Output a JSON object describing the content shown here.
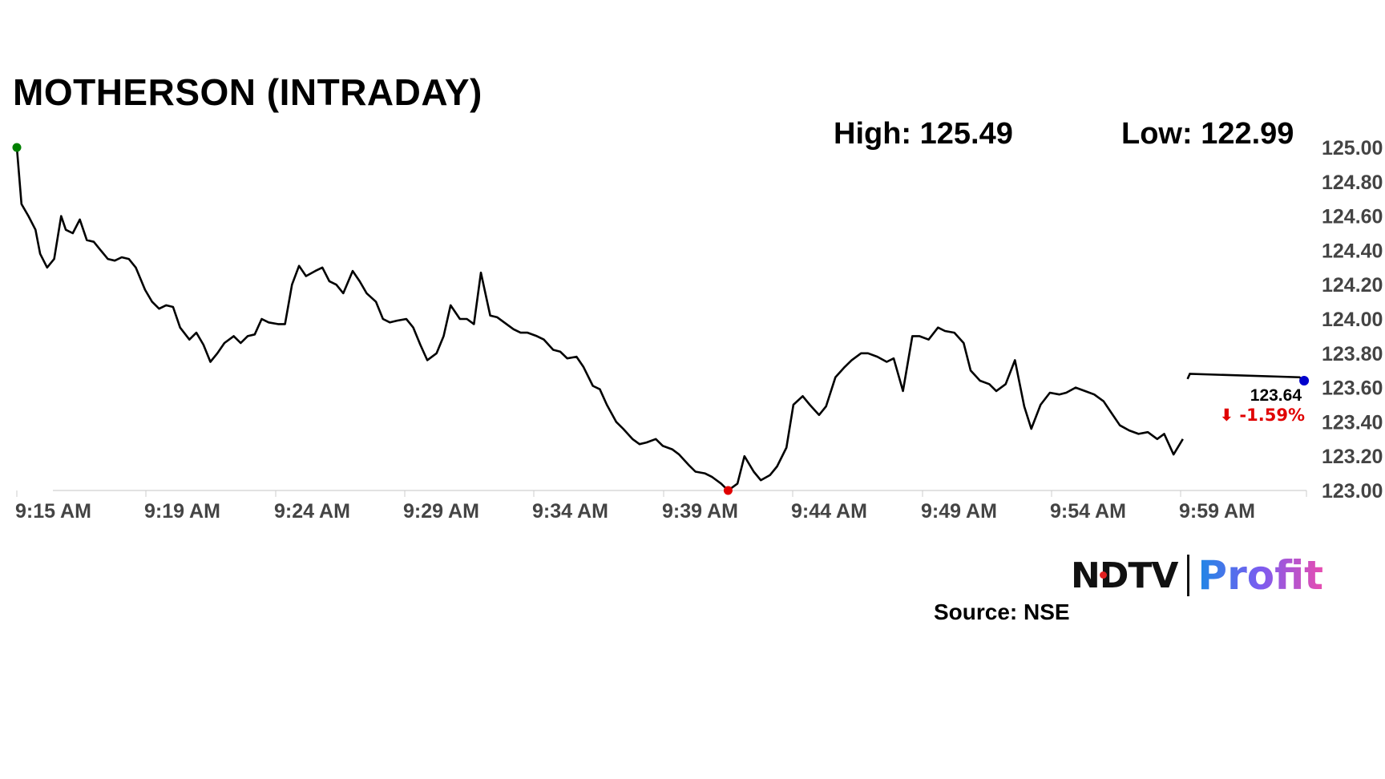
{
  "title": "MOTHERSON (INTRADAY)",
  "stats": {
    "high": "High: 125.49",
    "low": "Low: 122.99"
  },
  "source": "Source: NSE",
  "logo": {
    "ndtv": "NDTV",
    "profit": "Profit"
  },
  "last_price_label": "123.64",
  "change_label": "⬇ -1.59%",
  "colors": {
    "line": "#000000",
    "start_marker": "#008000",
    "low_marker": "#e00000",
    "end_marker": "#0000cc",
    "change_text": "#e00000"
  },
  "chart_data": {
    "type": "line",
    "title": "MOTHERSON (INTRADAY)",
    "x_tick_labels": [
      "9:15 AM",
      "9:19 AM",
      "9:24 AM",
      "9:29 AM",
      "9:34 AM",
      "9:39 AM",
      "9:44 AM",
      "9:49 AM",
      "9:54 AM",
      "9:59 AM"
    ],
    "y_tick_labels": [
      "125.00",
      "124.80",
      "124.60",
      "124.40",
      "124.20",
      "124.00",
      "123.80",
      "123.60",
      "123.40",
      "123.20",
      "123.00"
    ],
    "ylim": [
      123.0,
      125.0
    ],
    "y_axis_side": "right",
    "grid": false,
    "series": [
      {
        "x_minutes_since_915": [
          0.0,
          0.2,
          0.5,
          0.8,
          1.0,
          1.3,
          1.6,
          1.9,
          2.1,
          2.4,
          2.7,
          3.0,
          3.3,
          3.6,
          3.9,
          4.2,
          4.5,
          4.8,
          5.1,
          5.5,
          5.8,
          6.1,
          6.4,
          6.7,
          7.0,
          7.4,
          7.7,
          8.0,
          8.3,
          8.6,
          8.9,
          9.3,
          9.6,
          9.9,
          10.2,
          10.5,
          10.8,
          11.2,
          11.5,
          11.8,
          12.1,
          12.4,
          12.8,
          13.1,
          13.4,
          13.7,
          14.0,
          14.4,
          14.7,
          15.0,
          15.4,
          15.7,
          16.0,
          16.3,
          16.7,
          17.0,
          17.3,
          17.6,
          18.0,
          18.3,
          18.6,
          19.0,
          19.3,
          19.6,
          19.9,
          20.3,
          20.6,
          20.9,
          21.3,
          21.6,
          21.9,
          22.3,
          22.6,
          23.0,
          23.3,
          23.6,
          24.0,
          24.3,
          24.7,
          25.0,
          25.3,
          25.7,
          26.0,
          26.4,
          26.7,
          27.0,
          27.4,
          27.7,
          28.1,
          28.4,
          28.8,
          29.1,
          29.5,
          29.8,
          30.2,
          30.5,
          30.9,
          31.2,
          31.6,
          31.9,
          32.3,
          32.6,
          33.0,
          33.3,
          33.7,
          34.0,
          34.4,
          34.7,
          35.1,
          35.5,
          35.8,
          36.2,
          36.5,
          36.9,
          37.3,
          37.6,
          38.0,
          38.4,
          38.7,
          39.1,
          39.5,
          39.8,
          40.2,
          40.6,
          40.9,
          41.3,
          41.7,
          42.0,
          42.4,
          42.8,
          43.2,
          43.5,
          43.9,
          44.3,
          44.7,
          45.0,
          45.4,
          45.8,
          46.2,
          46.6,
          46.9,
          47.3,
          47.7,
          48.1,
          48.5,
          48.9,
          49.2,
          49.6,
          50.0
        ],
        "y": [
          125.0,
          124.67,
          124.6,
          124.52,
          124.38,
          124.3,
          124.35,
          124.6,
          124.52,
          124.5,
          124.58,
          124.46,
          124.45,
          124.4,
          124.35,
          124.34,
          124.36,
          124.35,
          124.3,
          124.17,
          124.1,
          124.06,
          124.08,
          124.07,
          123.95,
          123.88,
          123.92,
          123.85,
          123.75,
          123.8,
          123.86,
          123.9,
          123.86,
          123.9,
          123.91,
          124.0,
          123.98,
          123.97,
          123.97,
          124.2,
          124.31,
          124.25,
          124.28,
          124.3,
          124.22,
          124.2,
          124.15,
          124.28,
          124.22,
          124.15,
          124.1,
          124.0,
          123.98,
          123.99,
          124.0,
          123.95,
          123.85,
          123.76,
          123.8,
          123.9,
          124.08,
          124.0,
          124.0,
          123.97,
          124.27,
          124.02,
          124.01,
          123.98,
          123.94,
          123.92,
          123.92,
          123.9,
          123.88,
          123.82,
          123.81,
          123.77,
          123.78,
          123.72,
          123.61,
          123.59,
          123.5,
          123.4,
          123.36,
          123.3,
          123.27,
          123.28,
          123.3,
          123.26,
          123.24,
          123.21,
          123.15,
          123.11,
          123.1,
          123.08,
          123.04,
          123.0,
          123.04,
          123.2,
          123.11,
          123.06,
          123.09,
          123.14,
          123.25,
          123.5,
          123.55,
          123.5,
          123.44,
          123.49,
          123.66,
          123.72,
          123.76,
          123.8,
          123.8,
          123.78,
          123.75,
          123.77,
          123.58,
          123.9,
          123.9,
          123.88,
          123.95,
          123.93,
          123.92,
          123.86,
          123.7,
          123.64,
          123.62,
          123.58,
          123.62,
          123.76,
          123.49,
          123.36,
          123.5,
          123.57,
          123.56,
          123.57,
          123.6,
          123.58,
          123.56,
          123.52,
          123.46,
          123.38,
          123.35,
          123.33,
          123.34,
          123.3,
          123.33,
          123.21,
          123.3,
          123.36,
          123.64
        ]
      }
    ],
    "high": 125.49,
    "low": 122.99,
    "last": 123.64,
    "change_pct": -1.59
  }
}
